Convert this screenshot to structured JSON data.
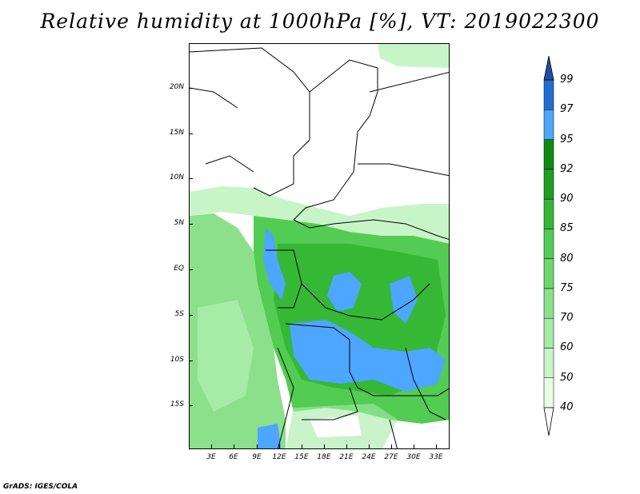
{
  "title": "Relative humidity at 1000hPa [%], VT: 2019022300",
  "credit": "GrADS: IGES/COLA",
  "y_axis_labels": [
    "20N",
    "15N",
    "10N",
    "5N",
    "EQ",
    "5S",
    "10S",
    "15S"
  ],
  "x_axis_labels": [
    "3E",
    "6E",
    "9E",
    "12E",
    "15E",
    "18E",
    "21E",
    "24E",
    "27E",
    "30E",
    "33E"
  ],
  "colorbar": {
    "levels": [
      "40",
      "50",
      "60",
      "70",
      "75",
      "80",
      "85",
      "90",
      "92",
      "95",
      "97",
      "99"
    ],
    "colors": [
      "#ffffff",
      "#e6ffe6",
      "#c8f5c8",
      "#a6eba6",
      "#8ce08c",
      "#6ed66e",
      "#52cc52",
      "#36b836",
      "#1f9e1f",
      "#108a10",
      "#4da6ff",
      "#1f6fd1",
      "#1a4fa8"
    ]
  }
}
